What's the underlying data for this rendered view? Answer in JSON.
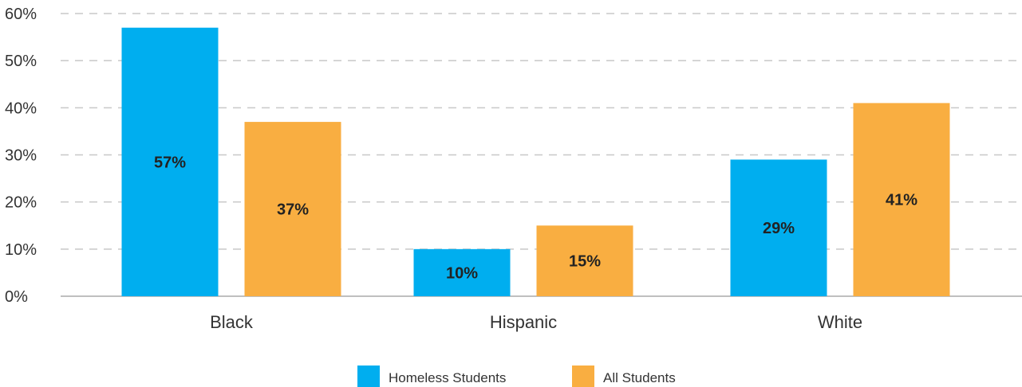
{
  "chart_data": {
    "type": "bar",
    "categories": [
      "Black",
      "Hispanic",
      "White"
    ],
    "series": [
      {
        "name": "Homeless Students",
        "values": [
          57,
          10,
          29
        ],
        "labels": [
          "57%",
          "10%",
          "29%"
        ],
        "color": "#00AEEF"
      },
      {
        "name": "All Students",
        "values": [
          37,
          15,
          41
        ],
        "labels": [
          "37%",
          "15%",
          "41%"
        ],
        "color": "#F9AE41"
      }
    ],
    "title": "",
    "xlabel": "",
    "ylabel": "",
    "ylim": [
      0,
      60
    ],
    "yticks": [
      0,
      10,
      20,
      30,
      40,
      50,
      60
    ],
    "ytick_labels": [
      "0%",
      "10%",
      "20%",
      "30%",
      "40%",
      "50%",
      "60%"
    ],
    "grid": "dashed horizontal",
    "legend_position": "bottom-center",
    "colors": {
      "gridline": "#C8C8C8",
      "axis": "#AAAAAA"
    }
  }
}
